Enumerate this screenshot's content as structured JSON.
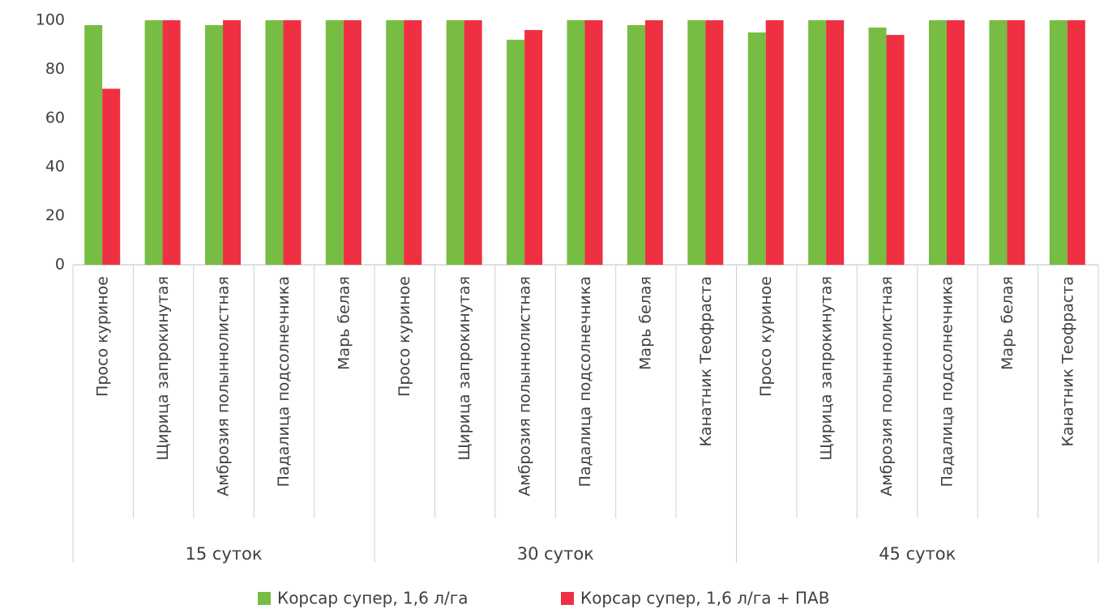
{
  "chart_data": {
    "type": "bar",
    "groups": [
      {
        "name": "15 суток",
        "categories": [
          "Просо куриное",
          "Щирица запрокинутая",
          "Амброзия полыннолистная",
          "Падалица подсолнечника",
          "Марь белая"
        ]
      },
      {
        "name": "30 суток",
        "categories": [
          "Просо куриное",
          "Щирица запрокинутая",
          "Амброзия полыннолистная",
          "Падалица подсолнечника",
          "Марь белая",
          "Канатник Теофраста"
        ]
      },
      {
        "name": "45 суток",
        "categories": [
          "Просо куриное",
          "Щирица запрокинутая",
          "Амброзия полыннолистная",
          "Падалица подсолнечника",
          "Марь белая",
          "Канатник Теофраста"
        ]
      }
    ],
    "series": [
      {
        "name": "Корсар супер, 1,6 л/га",
        "color": "#77bc43",
        "values": [
          98,
          100,
          98,
          100,
          100,
          100,
          100,
          92,
          100,
          98,
          100,
          95,
          100,
          97,
          100,
          100,
          100
        ]
      },
      {
        "name": "Корсар супер, 1,6 л/га + ПАВ",
        "color": "#ee3042",
        "values": [
          72,
          100,
          100,
          100,
          100,
          100,
          100,
          96,
          100,
          100,
          100,
          100,
          100,
          94,
          100,
          100,
          100
        ]
      }
    ],
    "ylim": [
      0,
      100
    ],
    "yticks": [
      0,
      20,
      40,
      60,
      80,
      100
    ],
    "grid": false,
    "legend": "bottom"
  }
}
